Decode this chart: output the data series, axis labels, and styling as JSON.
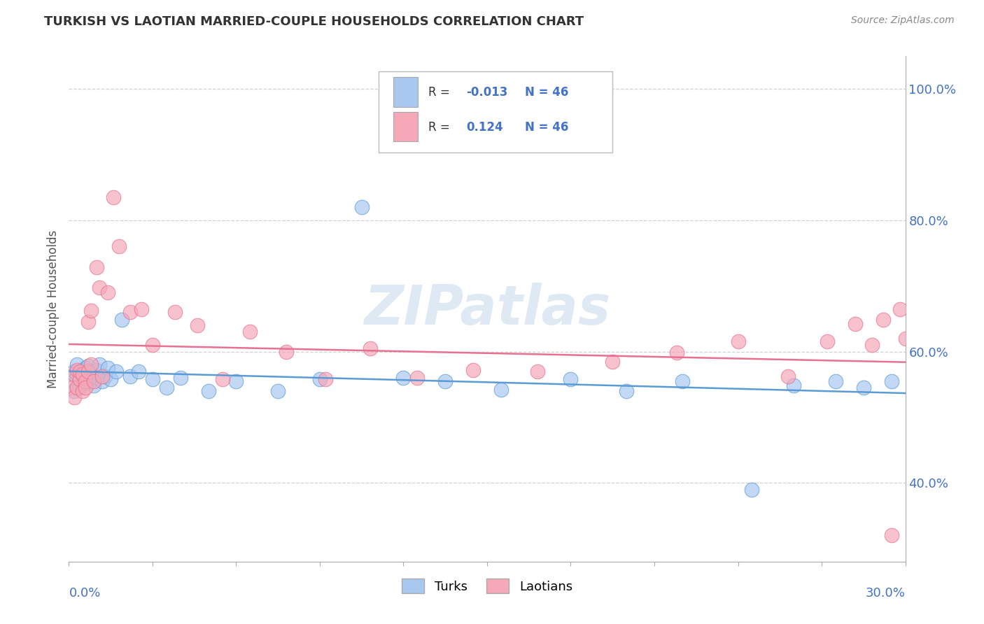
{
  "title": "TURKISH VS LAOTIAN MARRIED-COUPLE HOUSEHOLDS CORRELATION CHART",
  "source": "Source: ZipAtlas.com",
  "ylabel": "Married-couple Households",
  "color_turks": "#A8C8F0",
  "color_turks_line": "#5B9BD5",
  "color_laotians": "#F4A8B8",
  "color_laotians_line": "#E87090",
  "color_value_blue": "#4472C4",
  "watermark": "ZIPatlas",
  "turks_x": [
    0.001,
    0.002,
    0.002,
    0.003,
    0.003,
    0.004,
    0.004,
    0.005,
    0.005,
    0.006,
    0.006,
    0.007,
    0.007,
    0.008,
    0.008,
    0.009,
    0.01,
    0.01,
    0.011,
    0.012,
    0.013,
    0.014,
    0.015,
    0.017,
    0.019,
    0.022,
    0.025,
    0.03,
    0.035,
    0.04,
    0.05,
    0.06,
    0.075,
    0.09,
    0.105,
    0.12,
    0.135,
    0.155,
    0.18,
    0.2,
    0.22,
    0.245,
    0.26,
    0.275,
    0.285,
    0.295
  ],
  "turks_y": [
    0.555,
    0.57,
    0.54,
    0.565,
    0.58,
    0.558,
    0.545,
    0.572,
    0.56,
    0.575,
    0.552,
    0.563,
    0.578,
    0.555,
    0.568,
    0.548,
    0.572,
    0.56,
    0.58,
    0.555,
    0.562,
    0.575,
    0.558,
    0.57,
    0.648,
    0.562,
    0.57,
    0.558,
    0.545,
    0.56,
    0.54,
    0.555,
    0.54,
    0.558,
    0.82,
    0.56,
    0.555,
    0.542,
    0.558,
    0.54,
    0.555,
    0.39,
    0.548,
    0.555,
    0.545,
    0.555
  ],
  "laotians_x": [
    0.001,
    0.002,
    0.002,
    0.003,
    0.003,
    0.004,
    0.004,
    0.005,
    0.005,
    0.006,
    0.006,
    0.007,
    0.007,
    0.008,
    0.008,
    0.009,
    0.01,
    0.011,
    0.012,
    0.014,
    0.016,
    0.018,
    0.022,
    0.026,
    0.03,
    0.038,
    0.046,
    0.055,
    0.065,
    0.078,
    0.092,
    0.108,
    0.125,
    0.145,
    0.168,
    0.195,
    0.218,
    0.24,
    0.258,
    0.272,
    0.282,
    0.288,
    0.292,
    0.295,
    0.298,
    0.3
  ],
  "laotians_y": [
    0.545,
    0.565,
    0.53,
    0.572,
    0.545,
    0.558,
    0.57,
    0.54,
    0.565,
    0.555,
    0.545,
    0.57,
    0.645,
    0.58,
    0.662,
    0.555,
    0.728,
    0.698,
    0.562,
    0.69,
    0.835,
    0.76,
    0.66,
    0.665,
    0.61,
    0.66,
    0.64,
    0.558,
    0.63,
    0.6,
    0.558,
    0.605,
    0.56,
    0.572,
    0.57,
    0.585,
    0.598,
    0.615,
    0.562,
    0.615,
    0.642,
    0.61,
    0.648,
    0.32,
    0.665,
    0.62
  ],
  "xlim": [
    0.0,
    0.3
  ],
  "ylim": [
    0.28,
    1.05
  ],
  "yticks": [
    0.4,
    0.6,
    0.8,
    1.0
  ],
  "ytick_labels": [
    "40.0%",
    "60.0%",
    "80.0%",
    "100.0%"
  ]
}
